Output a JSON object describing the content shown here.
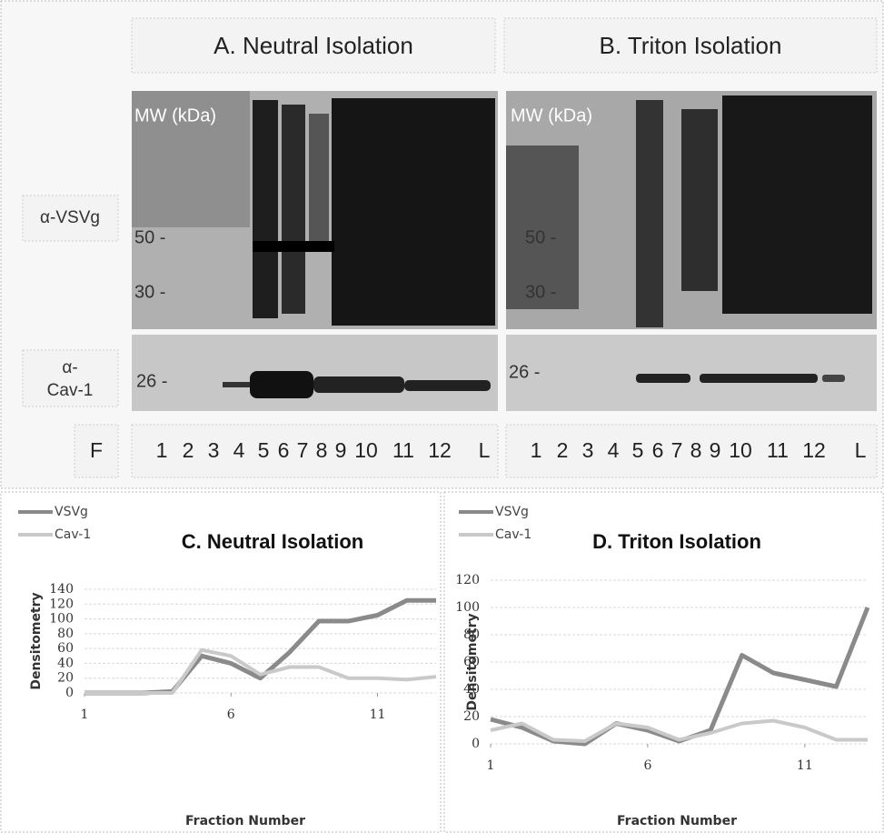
{
  "figure": {
    "panel_a_title": "A. Neutral Isolation",
    "panel_b_title": "B. Triton Isolation",
    "antibody_vsvg": "α-VSVg",
    "antibody_cav1_line1": "α-",
    "antibody_cav1_line2": "Cav-1",
    "mw_label": "MW (kDa)",
    "mw_50": "50 -",
    "mw_30": "30 -",
    "mw_26": "26 -",
    "fraction_label": "F",
    "lanes": [
      "1",
      "2",
      "3",
      "4",
      "5",
      "6",
      "7",
      "8",
      "9",
      "10",
      "11",
      "12",
      "L"
    ]
  },
  "chart_data": [
    {
      "type": "line",
      "title": "C. Neutral Isolation",
      "x_label": "Fraction Number",
      "y_label": "Densitometry",
      "x": [
        1,
        2,
        3,
        4,
        5,
        6,
        7,
        8,
        9,
        10,
        11,
        12,
        13
      ],
      "series": [
        {
          "name": "VSVg",
          "color": "#8a8a8a",
          "values": [
            0,
            0,
            0,
            2,
            50,
            40,
            20,
            55,
            97,
            97,
            105,
            125,
            125
          ]
        },
        {
          "name": "Cav-1",
          "color": "#c9c9c9",
          "values": [
            0,
            0,
            0,
            0,
            58,
            50,
            25,
            35,
            35,
            20,
            20,
            18,
            22
          ]
        }
      ],
      "xlim": [
        1,
        13
      ],
      "xticks": [
        1,
        6,
        11
      ],
      "ylim": [
        0,
        140
      ],
      "yticks": [
        0,
        20,
        40,
        60,
        80,
        100,
        120,
        140
      ],
      "grid": true,
      "legend": "upper left"
    },
    {
      "type": "line",
      "title": "D. Triton Isolation",
      "x_label": "Fraction Number",
      "y_label": "Densitometry",
      "x": [
        1,
        2,
        3,
        4,
        5,
        6,
        7,
        8,
        9,
        10,
        11,
        12,
        13
      ],
      "series": [
        {
          "name": "VSVg",
          "color": "#8a8a8a",
          "values": [
            18,
            12,
            2,
            0,
            15,
            10,
            2,
            10,
            65,
            52,
            47,
            42,
            100
          ]
        },
        {
          "name": "Cav-1",
          "color": "#c9c9c9",
          "values": [
            10,
            15,
            3,
            2,
            15,
            12,
            3,
            8,
            15,
            17,
            12,
            3,
            3
          ]
        }
      ],
      "xlim": [
        1,
        13
      ],
      "xticks": [
        1,
        6,
        11
      ],
      "ylim": [
        0,
        120
      ],
      "yticks": [
        0,
        20,
        40,
        60,
        80,
        100,
        120
      ],
      "grid": true,
      "legend": "upper left"
    }
  ]
}
